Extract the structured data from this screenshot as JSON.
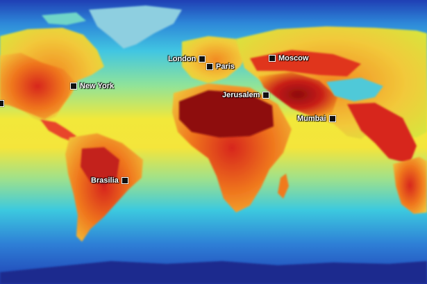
{
  "map": {
    "colors": {
      "ocean_deep": "#1f3fb4",
      "ocean_mid": "#2aa8e0",
      "ocean_warm": "#f2e83a",
      "land_cool": "#78e08a",
      "land_warm": "#f5a623",
      "land_hot": "#d7261e",
      "land_hottest": "#8e0d0d",
      "ice": "#bfe6ff"
    },
    "cities": [
      {
        "name": "London"
      },
      {
        "name": "Paris"
      },
      {
        "name": "Moscow"
      },
      {
        "name": "New York"
      },
      {
        "name": "Jerusalem"
      },
      {
        "name": "Mumbai"
      },
      {
        "name": "Brasilia"
      }
    ]
  }
}
